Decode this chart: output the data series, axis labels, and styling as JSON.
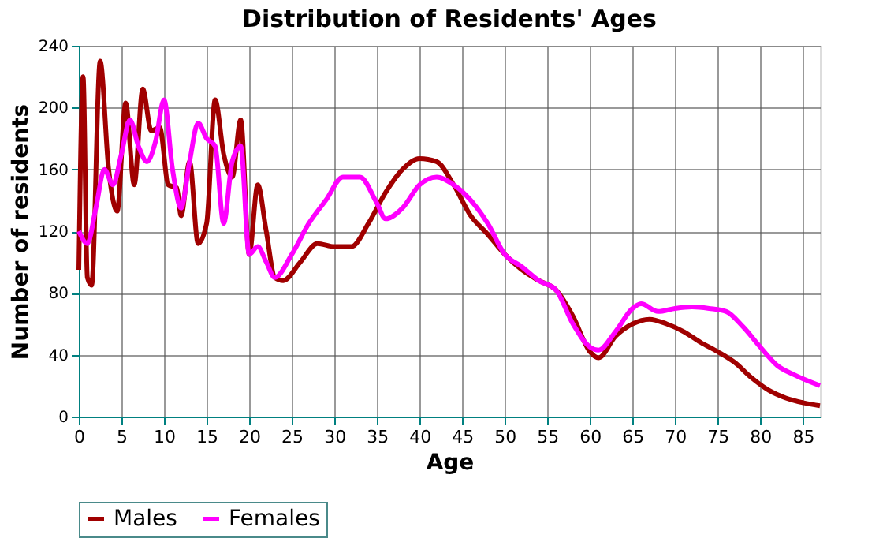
{
  "chart_data": {
    "type": "line",
    "title": "Distribution of Residents' Ages",
    "xlabel": "Age",
    "ylabel": "Number of residents",
    "xlim": [
      0,
      87
    ],
    "xticks": [
      0,
      5,
      10,
      15,
      20,
      25,
      30,
      35,
      40,
      45,
      50,
      55,
      60,
      65,
      70,
      75,
      80,
      85
    ],
    "ylim": [
      0,
      240
    ],
    "yticks": [
      0,
      40,
      80,
      120,
      160,
      200,
      240
    ],
    "grid": true,
    "legend": "bottom",
    "marker": "none",
    "line_style": "solid",
    "series": [
      {
        "name": "Males",
        "color": "#a00000",
        "x": [
          0,
          0.5,
          1,
          1.5,
          2.5,
          3.5,
          4.5,
          5.5,
          6.5,
          7.5,
          8.5,
          9.5,
          10.5,
          11.5,
          12,
          13,
          14,
          15,
          16,
          17,
          18,
          19,
          20,
          21,
          22,
          23,
          24,
          26,
          28,
          30,
          32,
          34,
          36,
          38,
          40,
          42,
          44,
          46,
          48,
          50,
          52,
          54,
          56,
          58,
          60,
          61,
          63,
          65,
          67,
          69,
          71,
          73,
          75,
          77,
          79,
          81,
          83,
          85,
          87
        ],
        "values": [
          95,
          220,
          90,
          85,
          230,
          160,
          133,
          203,
          150,
          212,
          185,
          187,
          150,
          148,
          130,
          165,
          112,
          125,
          205,
          170,
          155,
          192,
          105,
          150,
          120,
          90,
          88,
          100,
          112,
          110,
          110,
          125,
          145,
          160,
          167,
          165,
          150,
          130,
          118,
          105,
          95,
          88,
          82,
          65,
          42,
          38,
          52,
          60,
          63,
          60,
          55,
          48,
          42,
          35,
          25,
          17,
          12,
          9,
          7
        ]
      },
      {
        "name": "Females",
        "color": "#ff00ff",
        "x": [
          0,
          1,
          2,
          3,
          4,
          5,
          6,
          7,
          8,
          9,
          10,
          11,
          12,
          13,
          14,
          15,
          16,
          17,
          18,
          19,
          20,
          21,
          22,
          23,
          25,
          27,
          29,
          31,
          33,
          35,
          36,
          38,
          40,
          42,
          44,
          46,
          48,
          50,
          52,
          54,
          56,
          58,
          60,
          61,
          63,
          65,
          66,
          68,
          70,
          72,
          74,
          76,
          78,
          80,
          82,
          84,
          87
        ],
        "values": [
          120,
          112,
          135,
          160,
          150,
          170,
          192,
          175,
          165,
          178,
          205,
          160,
          135,
          165,
          190,
          180,
          175,
          125,
          165,
          175,
          105,
          110,
          100,
          90,
          105,
          125,
          140,
          155,
          155,
          138,
          128,
          135,
          150,
          155,
          150,
          140,
          125,
          105,
          97,
          88,
          82,
          60,
          45,
          43,
          55,
          70,
          73,
          68,
          70,
          71,
          70,
          68,
          58,
          45,
          33,
          27,
          20
        ]
      }
    ]
  }
}
